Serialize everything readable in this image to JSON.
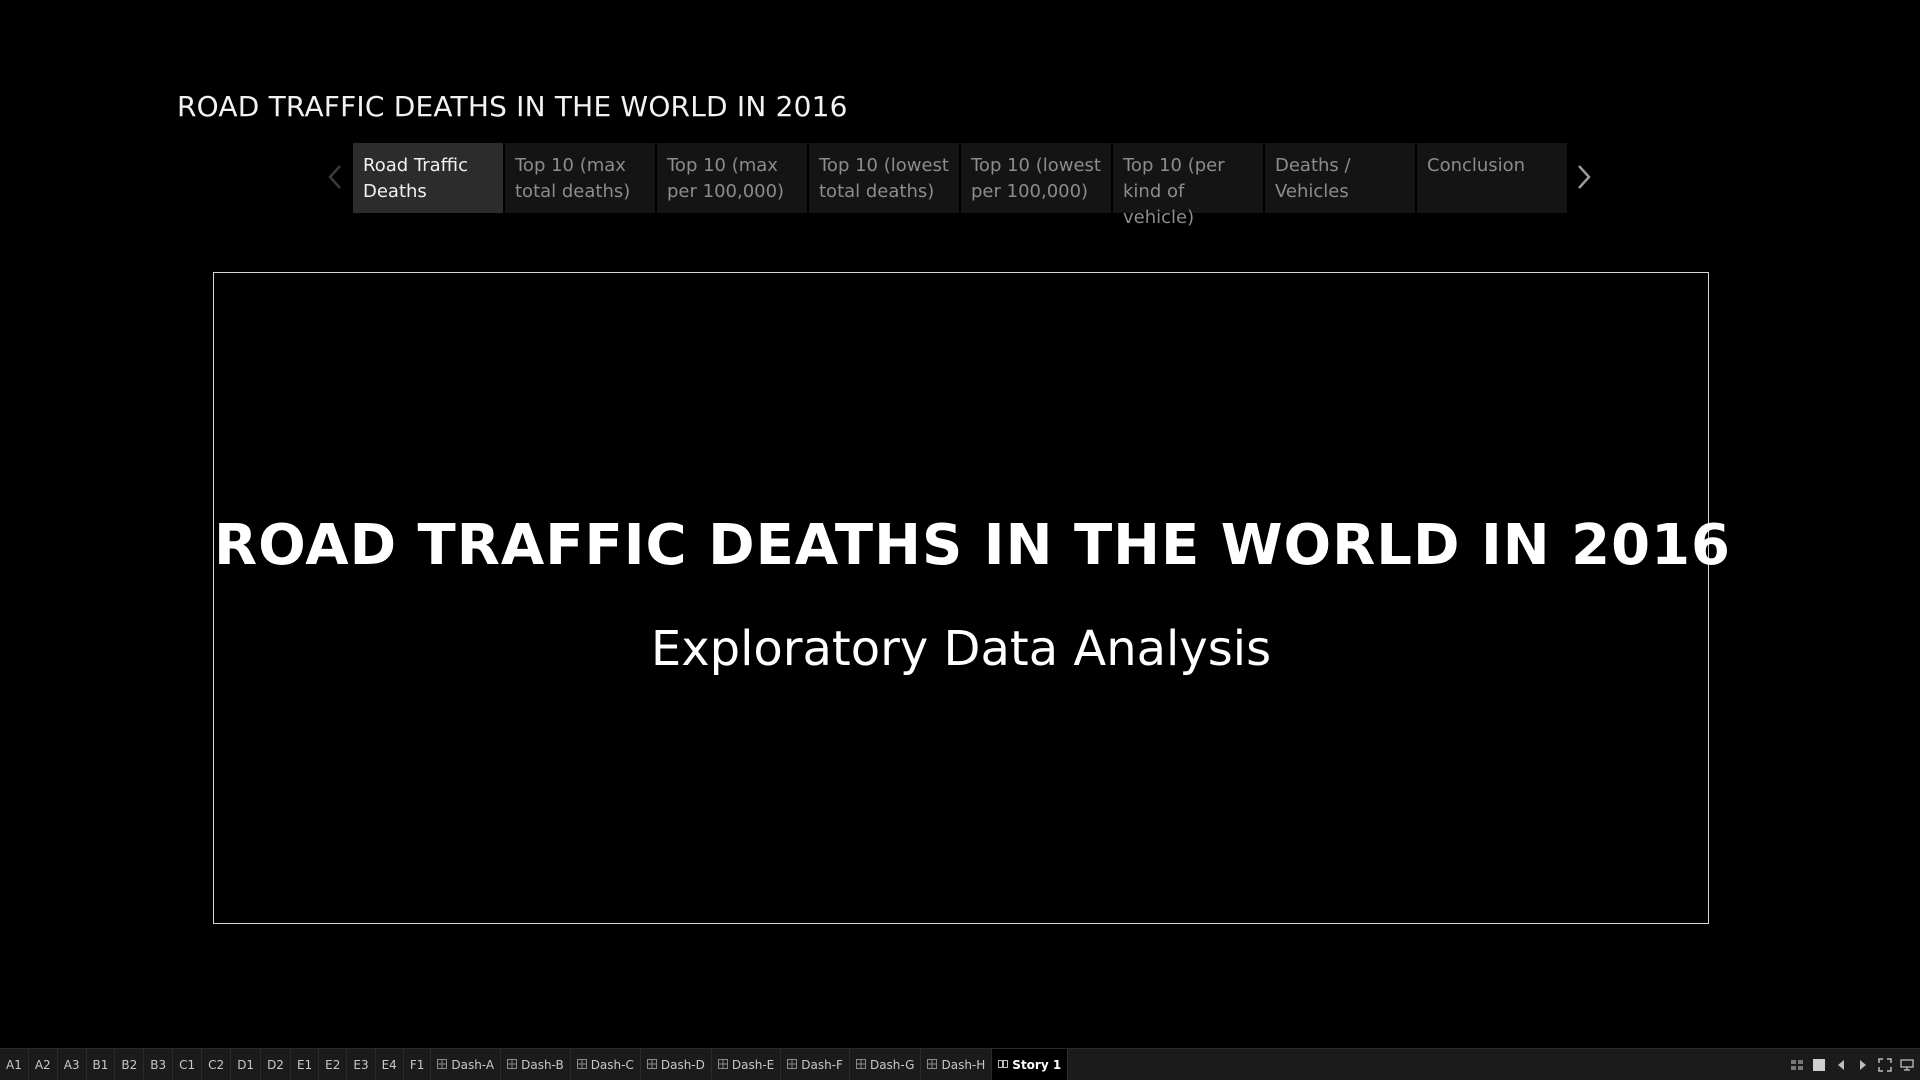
{
  "story": {
    "title": "ROAD TRAFFIC DEATHS IN THE WORLD IN 2016"
  },
  "story_points": [
    {
      "label": "Road Traffic Deaths",
      "active": true
    },
    {
      "label": "Top 10 (max total deaths)",
      "active": false
    },
    {
      "label": "Top 10 (max per 100,000)",
      "active": false
    },
    {
      "label": "Top 10 (lowest total deaths)",
      "active": false
    },
    {
      "label": "Top 10 (lowest per 100,000)",
      "active": false
    },
    {
      "label": "Top 10 (per kind of vehicle)",
      "active": false
    },
    {
      "label": "Deaths / Vehicles",
      "active": false
    },
    {
      "label": "Conclusion",
      "active": false
    }
  ],
  "nav": {
    "prev_icon": "chevron-left-icon",
    "next_icon": "chevron-right-icon"
  },
  "content": {
    "headline": "ROAD TRAFFIC DEATHS IN THE WORLD IN 2016",
    "subhead": "Exploratory Data Analysis"
  },
  "sheet_tabs": [
    {
      "label": "A1",
      "kind": "worksheet"
    },
    {
      "label": "A2",
      "kind": "worksheet"
    },
    {
      "label": "A3",
      "kind": "worksheet"
    },
    {
      "label": "B1",
      "kind": "worksheet"
    },
    {
      "label": "B2",
      "kind": "worksheet"
    },
    {
      "label": "B3",
      "kind": "worksheet"
    },
    {
      "label": "C1",
      "kind": "worksheet"
    },
    {
      "label": "C2",
      "kind": "worksheet"
    },
    {
      "label": "D1",
      "kind": "worksheet"
    },
    {
      "label": "D2",
      "kind": "worksheet"
    },
    {
      "label": "E1",
      "kind": "worksheet"
    },
    {
      "label": "E2",
      "kind": "worksheet"
    },
    {
      "label": "E3",
      "kind": "worksheet"
    },
    {
      "label": "E4",
      "kind": "worksheet"
    },
    {
      "label": "F1",
      "kind": "worksheet"
    },
    {
      "label": "Dash-A",
      "kind": "dashboard"
    },
    {
      "label": "Dash-B",
      "kind": "dashboard"
    },
    {
      "label": "Dash-C",
      "kind": "dashboard"
    },
    {
      "label": "Dash-D",
      "kind": "dashboard"
    },
    {
      "label": "Dash-E",
      "kind": "dashboard"
    },
    {
      "label": "Dash-F",
      "kind": "dashboard"
    },
    {
      "label": "Dash-G",
      "kind": "dashboard"
    },
    {
      "label": "Dash-H",
      "kind": "dashboard"
    },
    {
      "label": "Story 1",
      "kind": "story",
      "active": true
    }
  ],
  "bar_controls": [
    {
      "icon": "sheet-sorter-icon"
    },
    {
      "icon": "filmstrip-icon"
    },
    {
      "icon": "scroll-left-icon"
    },
    {
      "icon": "scroll-right-icon"
    },
    {
      "icon": "fullscreen-icon"
    },
    {
      "icon": "presentation-mode-icon"
    }
  ],
  "colors": {
    "background": "#000000",
    "tab_bg": "#141414",
    "tab_active_bg": "#2c2c2c",
    "tab_text": "#8c8c8c",
    "frame_border": "#d6d6d6"
  }
}
